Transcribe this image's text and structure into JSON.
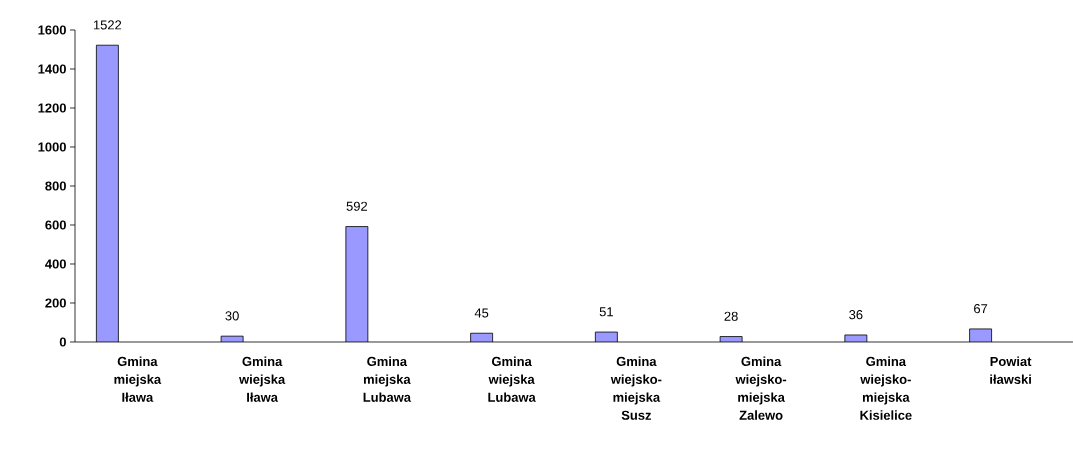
{
  "chart_data": {
    "type": "bar",
    "categories": [
      "Gmina miejska Iława",
      "Gmina wiejska Iława",
      "Gmina miejska Lubawa",
      "Gmina wiejska Lubawa",
      "Gmina wiejsko-miejska Susz",
      "Gmina wiejsko-miejska Zalewo",
      "Gmina wiejsko-miejska Kisielice",
      "Powiat iławski"
    ],
    "values": [
      1522,
      30,
      592,
      45,
      51,
      28,
      36,
      67
    ],
    "color": "#9999ff",
    "ylim": [
      0,
      1600
    ],
    "yticks": [
      0,
      200,
      400,
      600,
      800,
      1000,
      1200,
      1400,
      1600
    ],
    "data_labels": true
  }
}
